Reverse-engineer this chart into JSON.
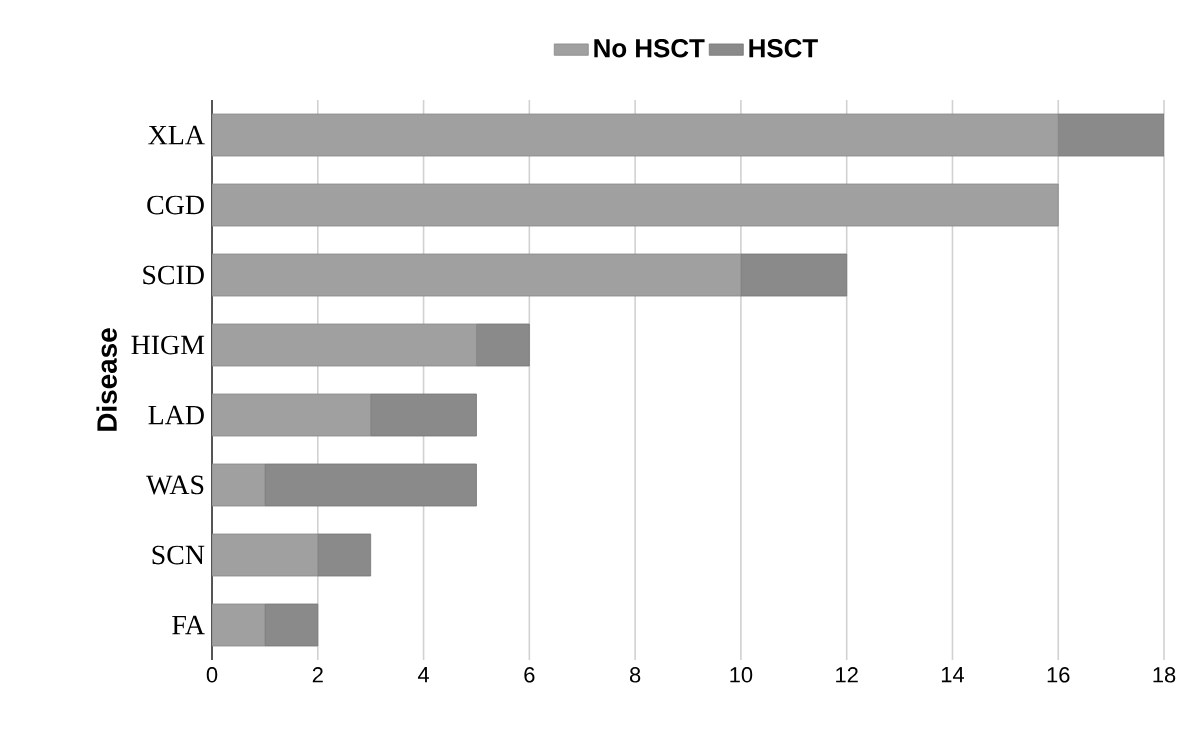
{
  "chart_data": {
    "type": "bar",
    "orientation": "horizontal",
    "stacked": true,
    "ylabel": "Disease",
    "categories": [
      "XLA",
      "CGD",
      "SCID",
      "HIGM",
      "LAD",
      "WAS",
      "SCN",
      "FA"
    ],
    "series": [
      {
        "name": "No HSCT",
        "color": "#a0a0a0",
        "values": [
          16,
          16,
          10,
          5,
          3,
          1,
          2,
          1
        ]
      },
      {
        "name": "HSCT",
        "color": "#8a8a8a",
        "values": [
          2,
          0,
          2,
          1,
          2,
          4,
          1,
          1
        ]
      }
    ],
    "xlim": [
      0,
      18
    ],
    "xticks": [
      0,
      2,
      4,
      6,
      8,
      10,
      12,
      14,
      16,
      18
    ],
    "grid": "x",
    "legend": "top"
  }
}
